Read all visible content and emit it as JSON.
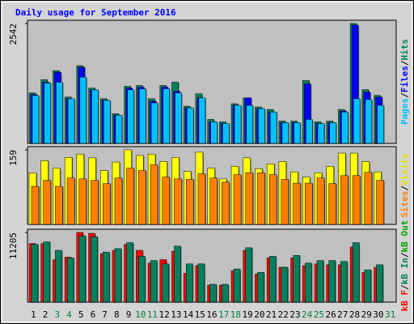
{
  "title": "Daily usage for September 2016",
  "x_axis": {
    "categories": [
      "1",
      "2",
      "3",
      "4",
      "5",
      "6",
      "7",
      "8",
      "9",
      "10",
      "11",
      "12",
      "13",
      "14",
      "15",
      "16",
      "17",
      "18",
      "19",
      "20",
      "21",
      "22",
      "23",
      "24",
      "25",
      "26",
      "27",
      "28",
      "29",
      "30",
      "31"
    ],
    "category_colors": [
      "#000000",
      "#000000",
      "#008040",
      "#008040",
      "#000000",
      "#000000",
      "#000000",
      "#000000",
      "#000000",
      "#008040",
      "#008040",
      "#000000",
      "#000000",
      "#000000",
      "#000000",
      "#000000",
      "#008040",
      "#008040",
      "#000000",
      "#000000",
      "#000000",
      "#000000",
      "#000000",
      "#008040",
      "#008040",
      "#000000",
      "#000000",
      "#000000",
      "#000000",
      "#000000",
      "#008040"
    ]
  },
  "chart_data": [
    {
      "type": "bar",
      "ylim": [
        0,
        2542
      ],
      "yticks": [
        2542
      ],
      "legend": [
        {
          "name": "Pages",
          "color": "#00c0ff"
        },
        {
          "name": "Files",
          "color": "#0000ff"
        },
        {
          "name": "Hits",
          "color": "#00805c"
        }
      ],
      "legend_separator": "/",
      "series": [
        {
          "name": "Hits",
          "color": "#00805c",
          "values": [
            1070,
            1350,
            1543,
            982,
            1648,
            1171,
            947,
            631,
            1210,
            1227,
            947,
            1227,
            1297,
            789,
            1052,
            508,
            456,
            841,
            964,
            771,
            719,
            473,
            473,
            1332,
            456,
            473,
            719,
            2542,
            1139,
            1017,
            null
          ]
        },
        {
          "name": "Files",
          "color": "#0000ff",
          "values": [
            1035,
            1297,
            1508,
            947,
            1613,
            1136,
            912,
            596,
            1171,
            1192,
            894,
            1192,
            1104,
            754,
            964,
            456,
            421,
            806,
            964,
            736,
            666,
            438,
            438,
            1262,
            421,
            438,
            684,
            2507,
            1087,
            982,
            null
          ]
        },
        {
          "name": "Pages",
          "color": "#00c0ff",
          "values": [
            1017,
            1280,
            1297,
            947,
            1403,
            1136,
            912,
            596,
            1136,
            1157,
            859,
            1157,
            1069,
            754,
            964,
            456,
            421,
            806,
            806,
            736,
            666,
            438,
            438,
            508,
            421,
            438,
            666,
            947,
            929,
            806,
            null
          ]
        }
      ]
    },
    {
      "type": "bar",
      "ylim": [
        0,
        159
      ],
      "yticks": [
        159
      ],
      "legend": [
        {
          "name": "Sites",
          "color": "#ff8000"
        },
        {
          "name": "Visits",
          "color": "#e0e000"
        }
      ],
      "legend_separator": "/",
      "series": [
        {
          "name": "Visits",
          "color": "#ffff00",
          "values": [
            110,
            136,
            120,
            143,
            150,
            142,
            115,
            133,
            159,
            147,
            150,
            134,
            143,
            113,
            154,
            120,
            97,
            124,
            142,
            119,
            129,
            134,
            112,
            101,
            110,
            124,
            152,
            152,
            134,
            112,
            null
          ]
        },
        {
          "name": "Sites",
          "color": "#ff8000",
          "values": [
            81,
            94,
            81,
            99,
            97,
            94,
            87,
            99,
            120,
            115,
            127,
            101,
            97,
            96,
            108,
            99,
            90,
            106,
            110,
            110,
            106,
            96,
            88,
            88,
            99,
            87,
            104,
            104,
            111,
            94,
            null
          ]
        }
      ]
    },
    {
      "type": "bar",
      "ylim": [
        0,
        11205
      ],
      "yticks": [
        11205
      ],
      "legend": [
        {
          "name": "kB F",
          "color": "#ff0000"
        },
        {
          "name": "kB In",
          "color": "#00805c"
        },
        {
          "name": "kB Out",
          "color": "#00a000"
        }
      ],
      "legend_separator": "/",
      "series": [
        {
          "name": "kB F",
          "color": "#ff0000",
          "values": [
            9426,
            9426,
            6830,
            7240,
            11205,
            11068,
            7787,
            8333,
            9289,
            8333,
            6284,
            6830,
            8196,
            4645,
            5874,
            2732,
            2732,
            5055,
            8333,
            4508,
            7104,
            5601,
            7104,
            5874,
            6148,
            6011,
            6011,
            8879,
            4781,
            5601,
            null
          ]
        },
        {
          "name": "kB In",
          "color": "#00805c",
          "values": [
            9289,
            9699,
            8333,
            7104,
            10658,
            10521,
            8060,
            8606,
            9562,
            7377,
            6694,
            6148,
            9016,
            6148,
            6148,
            2869,
            2869,
            5328,
            8743,
            4781,
            7377,
            5601,
            7514,
            6284,
            6694,
            6694,
            6557,
            9562,
            5191,
            6011,
            null
          ]
        }
      ]
    }
  ]
}
